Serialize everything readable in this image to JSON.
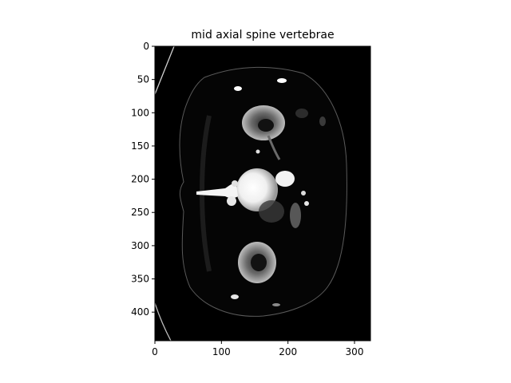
{
  "figure": {
    "title": "mid axial spine vertebrae",
    "image": {
      "extent_x": [
        0,
        324
      ],
      "extent_y": [
        0,
        443
      ],
      "description_kind": "axial CT slice"
    },
    "axes": {
      "x_ticks": [
        0,
        100,
        200,
        300
      ],
      "y_ticks": [
        0,
        50,
        100,
        150,
        200,
        250,
        300,
        350,
        400
      ]
    },
    "colors": {
      "image_bg": "#000000",
      "axis": "#000000"
    }
  }
}
